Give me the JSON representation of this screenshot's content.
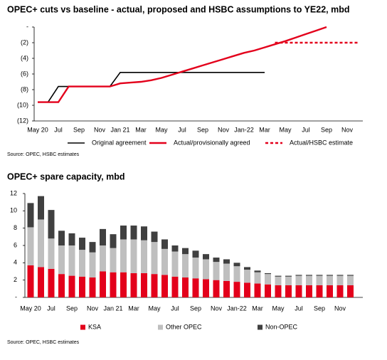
{
  "chart_data": [
    {
      "type": "line",
      "title": "OPEC+ cuts vs baseline - actual, proposed and HSBC assumptions to YE22, mbd",
      "source": "Source: OPEC, HSBC estimates",
      "categories": [
        "May 20",
        null,
        "Jul",
        null,
        "Sep",
        null,
        "Nov",
        null,
        "Jan 21",
        null,
        "Mar",
        null,
        "May",
        null,
        "Jul",
        null,
        "Sep",
        null,
        "Nov",
        null,
        "Jan-22",
        null,
        "Mar",
        null,
        "May",
        null,
        "Jul",
        null,
        "Sep",
        null,
        "Nov",
        null
      ],
      "ylim": [
        -12,
        0
      ],
      "yticks": [
        {
          "value": 0,
          "label": "-"
        },
        {
          "value": -2,
          "label": "(2)"
        },
        {
          "value": -4,
          "label": "(4)"
        },
        {
          "value": -6,
          "label": "(6)"
        },
        {
          "value": -8,
          "label": "(8)"
        },
        {
          "value": -10,
          "label": "(10)"
        },
        {
          "value": -12,
          "label": "(12)"
        }
      ],
      "grid": false,
      "series": [
        {
          "name": "Original agreement",
          "color": "#000000",
          "dashed": false,
          "values": [
            -9.6,
            -9.6,
            -7.6,
            -7.6,
            -7.6,
            -7.6,
            -7.6,
            -7.6,
            -5.8,
            -5.8,
            -5.8,
            -5.8,
            -5.8,
            -5.8,
            -5.8,
            -5.8,
            -5.8,
            -5.8,
            -5.8,
            -5.8,
            -5.8,
            -5.8,
            -5.8,
            null,
            null,
            null,
            null,
            null,
            null,
            null,
            null,
            null
          ]
        },
        {
          "name": "Actual/provisionally agreed",
          "color": "#e3001b",
          "dashed": false,
          "values": [
            -9.6,
            -9.6,
            -9.6,
            -7.6,
            -7.6,
            -7.6,
            -7.6,
            -7.6,
            -7.2,
            -7.1,
            -7.0,
            -6.8,
            -6.5,
            -6.1,
            -5.7,
            -5.3,
            -4.9,
            -4.5,
            -4.1,
            -3.7,
            -3.3,
            -3.0,
            -2.6,
            -2.2,
            -1.8,
            -1.35,
            -0.9,
            -0.45,
            0,
            null,
            null,
            null
          ]
        },
        {
          "name": "Actual/HSBC estimate",
          "color": "#e3001b",
          "dashed": true,
          "values": [
            null,
            null,
            null,
            null,
            null,
            null,
            null,
            null,
            null,
            null,
            null,
            null,
            null,
            null,
            null,
            null,
            null,
            null,
            null,
            null,
            null,
            null,
            null,
            -2.0,
            -2.0,
            -2.0,
            -2.0,
            -2.0,
            -2.0,
            -2.0,
            -2.0,
            -2.0
          ]
        }
      ]
    },
    {
      "type": "bar",
      "stacked": true,
      "title": "OPEC+ spare capacity, mbd",
      "source": "Source: OPEC, HSBC estimates",
      "categories": [
        "May 20",
        null,
        "Jul",
        null,
        "Sep",
        null,
        "Nov",
        null,
        "Jan 21",
        null,
        "Mar",
        null,
        "May",
        null,
        "Jul",
        null,
        "Sep",
        null,
        "Nov",
        null,
        "Jan-22",
        null,
        "Mar",
        null,
        "May",
        null,
        "Jul",
        null,
        "Sep",
        null,
        "Nov",
        null
      ],
      "ylim": [
        0,
        12
      ],
      "yticks": [
        {
          "value": 0,
          "label": "-"
        },
        2,
        4,
        6,
        8,
        10,
        12
      ],
      "grid": false,
      "series": [
        {
          "name": "KSA",
          "color": "#e3001b",
          "values": [
            3.7,
            3.5,
            3.3,
            2.7,
            2.5,
            2.4,
            2.3,
            3.0,
            2.9,
            2.9,
            2.8,
            2.8,
            2.7,
            2.6,
            2.4,
            2.3,
            2.2,
            2.1,
            2.0,
            1.9,
            1.8,
            1.7,
            1.6,
            1.5,
            1.4,
            1.4,
            1.4,
            1.4,
            1.4,
            1.4,
            1.4,
            1.4
          ]
        },
        {
          "name": "Other OPEC",
          "color": "#bfbfbf",
          "values": [
            4.4,
            5.5,
            3.5,
            3.3,
            3.5,
            3.1,
            2.9,
            3.0,
            2.8,
            3.8,
            3.9,
            3.8,
            3.7,
            3.0,
            2.9,
            2.7,
            2.4,
            2.3,
            2.1,
            2.0,
            1.8,
            1.5,
            1.3,
            1.2,
            1.0,
            1.0,
            1.1,
            1.1,
            1.1,
            1.1,
            1.1,
            1.1
          ]
        },
        {
          "name": "Non-OPEC",
          "color": "#404040",
          "values": [
            2.8,
            2.7,
            3.3,
            1.7,
            1.4,
            1.4,
            1.2,
            1.9,
            1.6,
            1.6,
            1.6,
            1.6,
            1.2,
            1.1,
            0.7,
            0.7,
            0.8,
            0.6,
            0.5,
            0.5,
            0.4,
            0.3,
            0.2,
            0.1,
            0.1,
            0.1,
            0.1,
            0.1,
            0.1,
            0.1,
            0.1,
            0.1
          ]
        }
      ]
    }
  ]
}
